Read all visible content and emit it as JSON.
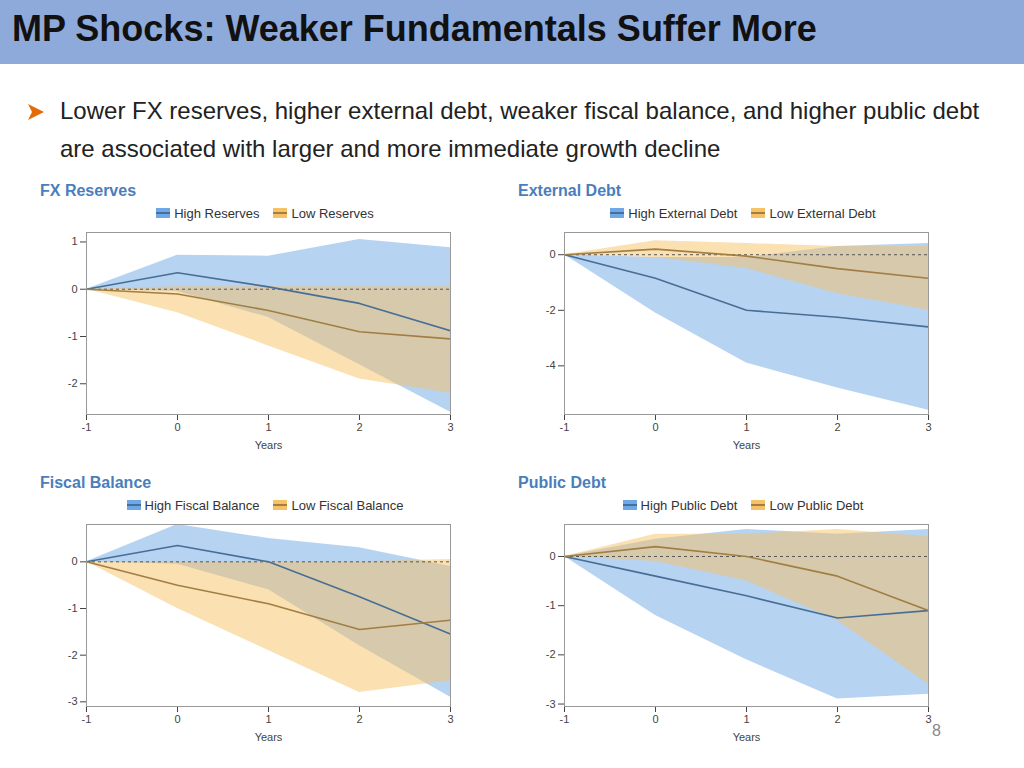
{
  "slide": {
    "title": "MP Shocks: Weaker Fundamentals Suffer More",
    "bullet": "Lower FX reserves, higher external debt, weaker fiscal balance, and higher public debt are associated with larger and more immediate growth decline",
    "page_number": "8"
  },
  "chart_data": [
    {
      "type": "line",
      "title": "FX Reserves",
      "x_label": "Years",
      "x": [
        -1,
        0,
        1,
        2,
        3
      ],
      "xlim": [
        -1,
        3
      ],
      "xticks": [
        -1,
        0,
        1,
        2,
        3
      ],
      "ylim": [
        -2.65,
        1.2
      ],
      "yticks": [
        -2,
        -1,
        0,
        1
      ],
      "zero_line": 0,
      "legend": "top",
      "series": [
        {
          "name": "High Reserves",
          "color": "#6fa8e6",
          "values": [
            0,
            0.35,
            0.05,
            -0.3,
            -0.88
          ],
          "lower": [
            0,
            -0.05,
            -0.6,
            -1.6,
            -2.6
          ],
          "upper": [
            0,
            0.72,
            0.7,
            1.05,
            0.88
          ]
        },
        {
          "name": "Low Reserves",
          "color": "#f7c265",
          "values": [
            0,
            -0.1,
            -0.45,
            -0.9,
            -1.05
          ],
          "lower": [
            0,
            -0.5,
            -1.2,
            -1.9,
            -2.2
          ],
          "upper": [
            0,
            0.05,
            0.05,
            0.05,
            0.05
          ]
        }
      ]
    },
    {
      "type": "line",
      "title": "External Debt",
      "x_label": "Years",
      "x": [
        -1,
        0,
        1,
        2,
        3
      ],
      "xlim": [
        -1,
        3
      ],
      "xticks": [
        -1,
        0,
        1,
        2,
        3
      ],
      "ylim": [
        -5.75,
        0.8
      ],
      "yticks": [
        -4,
        -2,
        0
      ],
      "zero_line": 0,
      "legend": "top",
      "series": [
        {
          "name": "High External Debt",
          "color": "#6fa8e6",
          "values": [
            0,
            -0.85,
            -2.0,
            -2.25,
            -2.6
          ],
          "lower": [
            0,
            -2.1,
            -3.9,
            -4.8,
            -5.6
          ],
          "upper": [
            0,
            -0.1,
            -0.1,
            0.3,
            0.4
          ]
        },
        {
          "name": "Low External Debt",
          "color": "#f7c265",
          "values": [
            0,
            0.2,
            -0.05,
            -0.5,
            -0.85
          ],
          "lower": [
            0,
            -0.1,
            -0.5,
            -1.4,
            -2.0
          ],
          "upper": [
            0,
            0.5,
            0.4,
            0.3,
            0.3
          ]
        }
      ]
    },
    {
      "type": "line",
      "title": "Fiscal Balance",
      "x_label": "Years",
      "x": [
        -1,
        0,
        1,
        2,
        3
      ],
      "xlim": [
        -1,
        3
      ],
      "xticks": [
        -1,
        0,
        1,
        2,
        3
      ],
      "ylim": [
        -3.1,
        0.8
      ],
      "yticks": [
        -3,
        -2,
        -1,
        0
      ],
      "zero_line": 0,
      "legend": "top",
      "series": [
        {
          "name": "High Fiscal Balance",
          "color": "#6fa8e6",
          "values": [
            0,
            0.35,
            0.0,
            -0.75,
            -1.55
          ],
          "lower": [
            0,
            -0.05,
            -0.6,
            -1.8,
            -2.9
          ],
          "upper": [
            0,
            0.8,
            0.5,
            0.3,
            -0.1
          ]
        },
        {
          "name": "Low Fiscal Balance",
          "color": "#f7c265",
          "values": [
            0,
            -0.5,
            -0.9,
            -1.45,
            -1.25
          ],
          "lower": [
            0,
            -1.0,
            -1.9,
            -2.8,
            -2.55
          ],
          "upper": [
            0,
            0.0,
            0.0,
            0.0,
            0.05
          ]
        }
      ]
    },
    {
      "type": "line",
      "title": "Public Debt",
      "x_label": "Years",
      "x": [
        -1,
        0,
        1,
        2,
        3
      ],
      "xlim": [
        -1,
        3
      ],
      "xticks": [
        -1,
        0,
        1,
        2,
        3
      ],
      "ylim": [
        -3.05,
        0.65
      ],
      "yticks": [
        -3,
        -2,
        -1,
        0
      ],
      "zero_line": 0,
      "legend": "top",
      "series": [
        {
          "name": "High Public Debt",
          "color": "#6fa8e6",
          "values": [
            0,
            -0.4,
            -0.8,
            -1.25,
            -1.1
          ],
          "lower": [
            0,
            -1.2,
            -2.1,
            -2.9,
            -2.8
          ],
          "upper": [
            0,
            0.35,
            0.55,
            0.45,
            0.55
          ]
        },
        {
          "name": "Low Public Debt",
          "color": "#f7c265",
          "values": [
            0,
            0.2,
            0.0,
            -0.4,
            -1.1
          ],
          "lower": [
            0,
            -0.1,
            -0.5,
            -1.3,
            -2.6
          ],
          "upper": [
            0,
            0.45,
            0.45,
            0.55,
            0.4
          ]
        }
      ]
    }
  ]
}
